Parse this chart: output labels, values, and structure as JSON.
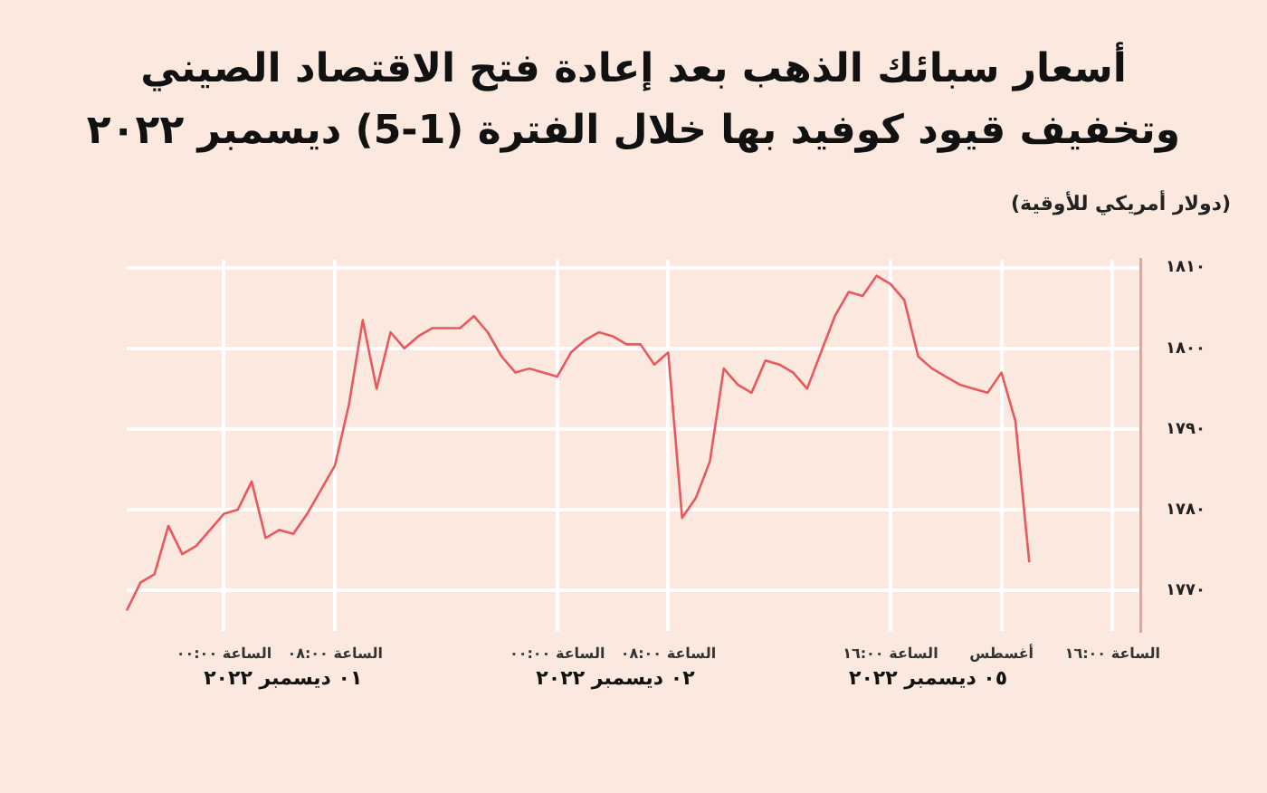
{
  "chart_data": {
    "type": "line",
    "title": "أسعار سبائك الذهب بعد  إعادة فتح الاقتصاد الصيني وتخفيف قيود كوفيد بها خلال الفترة (1-5) ديسمبر ٢٠٢٢",
    "ylabel": "(دولار أمريكي للأوقية)",
    "categories": [
      null,
      null,
      null,
      null,
      null,
      null,
      null,
      "الساعة ٠٠:٠٠",
      null,
      null,
      null,
      null,
      null,
      null,
      null,
      "الساعة ٠٨:٠٠",
      null,
      null,
      null,
      null,
      null,
      null,
      null,
      null,
      null,
      null,
      null,
      null,
      null,
      null,
      null,
      "الساعة ٠٠:٠٠",
      null,
      null,
      null,
      null,
      null,
      null,
      null,
      "الساعة ٠٨:٠٠",
      null,
      null,
      null,
      null,
      null,
      null,
      null,
      null,
      null,
      null,
      null,
      null,
      null,
      null,
      null,
      "الساعة ١٦:٠٠",
      null,
      null,
      null,
      null,
      null,
      null,
      null,
      "أغسطس",
      null,
      null,
      null,
      null,
      null,
      null,
      null,
      "الساعة ١٦:٠٠",
      null,
      null
    ],
    "series": [
      {
        "color": "#e8585c",
        "values": [
          1767.5,
          1771,
          1772,
          1778,
          1774.5,
          1775.5,
          1777.5,
          1779.5,
          1780,
          1783.5,
          1776.5,
          1777.5,
          1777,
          1779.5,
          1782.5,
          1785.5,
          1793,
          1803.5,
          1795,
          1802,
          1800,
          1801.5,
          1802.5,
          1802.5,
          1802.5,
          1804,
          1802,
          1799,
          1797,
          1797.5,
          1797,
          1796.5,
          1799.5,
          1801,
          1802,
          1801.5,
          1800.5,
          1800.5,
          1798,
          1799.5,
          1779,
          1781.5,
          1786,
          1797.5,
          1795.5,
          1794.5,
          1798.5,
          1798,
          1797,
          1795,
          1799.5,
          1804,
          1807,
          1806.5,
          1809,
          1808,
          1806,
          1799,
          1797.5,
          1796.5,
          1795.5,
          1795,
          1794.5,
          1797,
          1791,
          1773.5,
          null,
          null,
          null,
          null,
          null,
          null,
          null,
          null
        ]
      }
    ],
    "ylim": [
      1765,
      1811
    ],
    "yticks": [
      {
        "value": 1770,
        "label": "١٧٧٠"
      },
      {
        "value": 1780,
        "label": "١٧٨٠"
      },
      {
        "value": 1790,
        "label": "١٧٩٠"
      },
      {
        "value": 1800,
        "label": "١٨٠٠"
      },
      {
        "value": 1810,
        "label": "١٨١٠"
      }
    ],
    "annotations": [
      "٠١ ديسمبر ٢٠٢٢",
      "٠٢ ديسمبر ٢٠٢٢",
      "٠٥ ديسمبر ٢٠٢٢"
    ],
    "grid": true,
    "legend": false,
    "marker": "none",
    "line_style": "solid"
  }
}
